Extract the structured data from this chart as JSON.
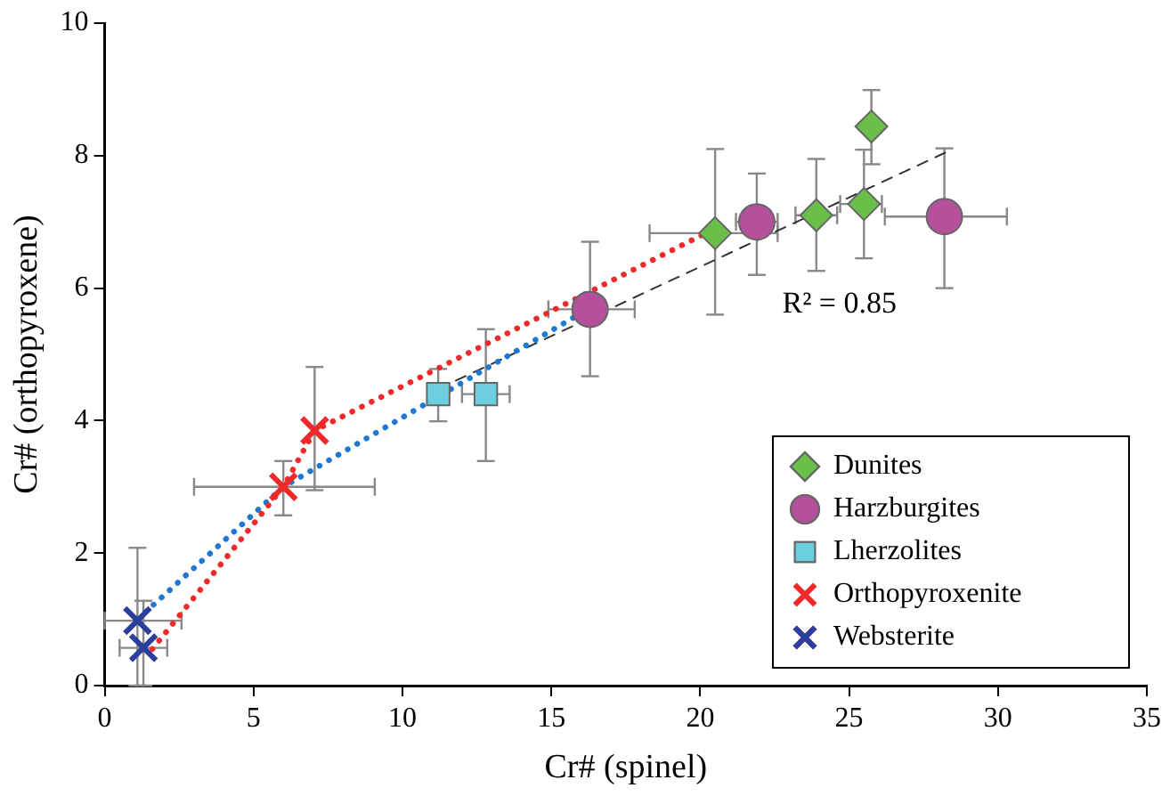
{
  "chart_data": {
    "type": "scatter",
    "xlabel": "Cr# (spinel)",
    "ylabel": "Cr# (orthopyroxene)",
    "xlim": [
      0,
      35
    ],
    "xticks": [
      0,
      5,
      10,
      15,
      20,
      25,
      30,
      35
    ],
    "ylim": [
      0,
      10
    ],
    "yticks": [
      0,
      2,
      4,
      6,
      8,
      10
    ],
    "grid": false,
    "legend": "bottom right",
    "annotations": [
      "R² = 0.85"
    ],
    "series": [
      {
        "type": "line",
        "color": "#ee2a2a",
        "line_style": "dotted",
        "marker": "none",
        "x": [
          1.6,
          6.0,
          7.05,
          20.5
        ],
        "values": [
          0.55,
          3.0,
          3.85,
          6.9
        ]
      },
      {
        "type": "line",
        "color": "#1f78d1",
        "line_style": "dotted",
        "marker": "none",
        "x": [
          1.1,
          6.0,
          16.3
        ],
        "values": [
          1.0,
          3.0,
          5.7
        ]
      },
      {
        "type": "line",
        "color": "#333333",
        "line_style": "dashed",
        "marker": "none",
        "x": [
          11.2,
          28.3
        ],
        "values": [
          4.48,
          8.06
        ]
      },
      {
        "name": "Dunites",
        "color": "#6abf4b",
        "marker": "diamond",
        "x": [
          20.5,
          23.9,
          25.5,
          25.75
        ],
        "values": [
          6.83,
          7.1,
          7.27,
          8.44
        ],
        "errors": [
          [
            5.6,
            8.1
          ],
          [
            6.26,
            7.95
          ],
          [
            6.45,
            8.09
          ],
          [
            7.87,
            8.99
          ]
        ],
        "xerrors": [
          [
            18.3,
            22.6
          ],
          [
            23.2,
            24.6
          ],
          [
            24.7,
            26.1
          ],
          null
        ]
      },
      {
        "name": "Harzburgites",
        "color": "#b5509d",
        "marker": "circle",
        "x": [
          16.3,
          21.9,
          28.2
        ],
        "values": [
          5.68,
          7.0,
          7.08
        ],
        "errors": [
          [
            4.67,
            6.7
          ],
          [
            6.2,
            7.73
          ],
          [
            6.0,
            8.11
          ]
        ],
        "xerrors": [
          [
            14.9,
            17.8
          ],
          [
            21.2,
            22.6
          ],
          [
            26.2,
            30.3
          ]
        ]
      },
      {
        "name": "Lherzolites",
        "color": "#6ccfe0",
        "marker": "square",
        "x": [
          11.2,
          12.8
        ],
        "values": [
          4.4,
          4.4
        ],
        "errors": [
          [
            3.99,
            4.78
          ],
          [
            3.39,
            5.38
          ]
        ],
        "xerrors": [
          null,
          [
            12.0,
            13.6
          ]
        ]
      },
      {
        "name": "Orthopyroxenite",
        "color": "#ee2a2a",
        "marker": "cross",
        "x": [
          6.0,
          7.05
        ],
        "values": [
          3.0,
          3.85
        ],
        "errors": [
          [
            2.57,
            3.39
          ],
          [
            2.95,
            4.81
          ]
        ],
        "xerrors": [
          [
            3.0,
            9.07
          ],
          null
        ]
      },
      {
        "name": "Websterite",
        "color": "#2b3f9e",
        "marker": "cross",
        "x": [
          1.1,
          1.3
        ],
        "values": [
          0.98,
          0.57
        ],
        "errors": [
          [
            0,
            2.08
          ],
          [
            0,
            1.28
          ]
        ],
        "xerrors": [
          [
            0,
            2.58
          ],
          [
            0.5,
            2.1
          ]
        ]
      }
    ]
  }
}
